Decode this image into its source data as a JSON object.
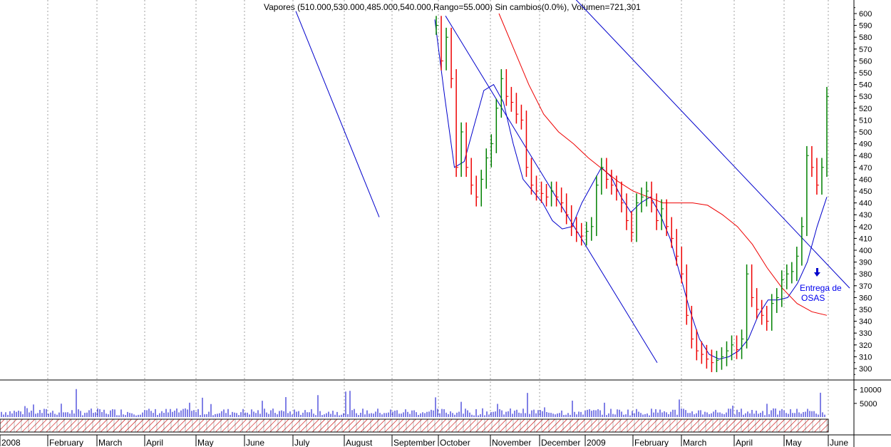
{
  "window": {
    "title": "Vapores (510.000,530.000,485.000,540.000,Rango=55.000) Sin cambios(0.0%), Volumen=721,301"
  },
  "annotation": {
    "line1": "Entrega de",
    "line2": "OSAS",
    "arrow": "up-arrow-icon"
  },
  "colors": {
    "up": "#008000",
    "down": "#ee0000",
    "trend": "#0000cc",
    "ma_long": "#ee0000",
    "ma_short": "#0000cc",
    "volume": "#0000cc",
    "grid": "#a0a0a0"
  },
  "chart_data": [
    {
      "type": "line",
      "title": "Vapores",
      "ylim": [
        290,
        610
      ],
      "y_ticks": [
        300,
        310,
        320,
        330,
        340,
        350,
        360,
        370,
        380,
        390,
        400,
        410,
        420,
        430,
        440,
        450,
        460,
        470,
        480,
        490,
        500,
        510,
        520,
        530,
        540,
        550,
        560,
        570,
        580,
        590,
        600
      ],
      "x_ticks": [
        "2008",
        "February",
        "March",
        "April",
        "May",
        "June",
        "July",
        "August",
        "September",
        "October",
        "November",
        "December",
        "2009",
        "February",
        "March",
        "April",
        "May",
        "June"
      ],
      "grid": true,
      "series": [
        {
          "kind": "ohlc_close",
          "values": [
            590,
            560,
            580,
            545,
            470,
            500,
            470,
            455,
            445,
            460,
            478,
            490,
            520,
            545,
            530,
            525,
            515,
            510,
            470,
            455,
            450,
            448,
            445,
            450,
            445,
            440,
            430,
            420,
            415,
            412,
            416,
            420,
            455,
            470,
            460,
            455,
            450,
            440,
            425,
            415,
            440,
            445,
            450,
            440,
            425,
            435,
            420,
            410,
            395,
            380,
            345,
            325,
            315,
            312,
            308,
            305,
            307,
            310,
            315,
            320,
            316,
            325,
            380,
            360,
            350,
            345,
            340,
            355,
            360,
            375,
            380,
            382,
            395,
            420,
            480,
            470,
            455,
            470,
            530
          ]
        },
        {
          "kind": "ma_short",
          "values": [
            595,
            530,
            470,
            475,
            505,
            535,
            540,
            525,
            490,
            460,
            450,
            440,
            425,
            418,
            420,
            440,
            455,
            470,
            462,
            445,
            432,
            440,
            445,
            430,
            410,
            380,
            350,
            325,
            312,
            308,
            310,
            315,
            325,
            345,
            358,
            358,
            360,
            372,
            390,
            420,
            445
          ]
        },
        {
          "kind": "ma_long",
          "values": [
            600,
            570,
            540,
            515,
            500,
            490,
            478,
            468,
            458,
            450,
            445,
            440,
            440,
            440,
            438,
            430,
            420,
            405,
            385,
            368,
            355,
            348,
            345
          ]
        },
        {
          "kind": "trendline",
          "values": [
            602,
            428
          ]
        },
        {
          "kind": "trendline",
          "values": [
            598,
            305
          ]
        },
        {
          "kind": "trendline",
          "values": [
            620,
            368
          ]
        }
      ],
      "annotations": [
        "Entrega de OSAS"
      ]
    },
    {
      "type": "bar",
      "title": "Volume",
      "y_ticks": [
        10000,
        5000
      ],
      "ylim": [
        0,
        12000
      ]
    }
  ]
}
